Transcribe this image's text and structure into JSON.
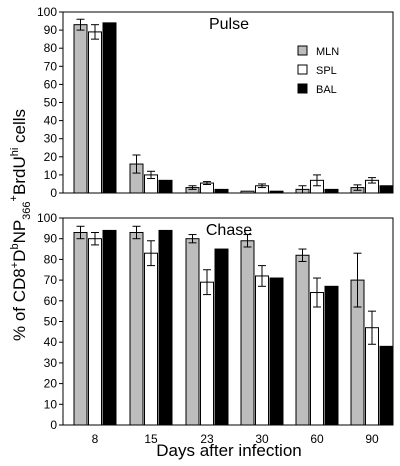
{
  "figure": {
    "xlabel": "Days after infection",
    "ylabel": {
      "p1": "% of CD8",
      "sup1": "+",
      "p2": "D",
      "sup2": "b",
      "p3": "NP",
      "sub3": "366",
      "sup3": "+",
      "p4": "BrdU",
      "sup4": "hi",
      "p5": " cells"
    }
  },
  "colors": {
    "MLN": "#bdbdbd",
    "SPL": "#ffffff",
    "BAL": "#000000"
  },
  "chart_data": [
    {
      "type": "bar",
      "title": "Pulse",
      "categories": [
        "8",
        "15",
        "23",
        "30",
        "60",
        "90"
      ],
      "ylim": [
        0,
        100
      ],
      "yticks": [
        0,
        10,
        20,
        30,
        40,
        50,
        60,
        70,
        80,
        90,
        100
      ],
      "legend": "top-right",
      "grid": false,
      "series": [
        {
          "name": "MLN",
          "values": [
            93,
            16,
            3,
            1,
            2,
            3
          ],
          "errors": [
            3,
            5,
            1,
            0,
            2,
            1.5
          ]
        },
        {
          "name": "SPL",
          "values": [
            89,
            10,
            5.5,
            4,
            7,
            7
          ],
          "errors": [
            4,
            2,
            0.8,
            1,
            3,
            1.5
          ]
        },
        {
          "name": "BAL",
          "values": [
            94,
            7,
            2,
            1,
            2,
            4
          ],
          "errors": [
            0,
            0,
            0,
            0,
            0,
            0
          ]
        }
      ]
    },
    {
      "type": "bar",
      "title": "Chase",
      "categories": [
        "8",
        "15",
        "23",
        "30",
        "60",
        "90"
      ],
      "ylim": [
        0,
        100
      ],
      "yticks": [
        0,
        10,
        20,
        30,
        40,
        50,
        60,
        70,
        80,
        90,
        100
      ],
      "grid": false,
      "series": [
        {
          "name": "MLN",
          "values": [
            93,
            93,
            90,
            89,
            82,
            70
          ],
          "errors": [
            3,
            3,
            2,
            3,
            3,
            13
          ]
        },
        {
          "name": "SPL",
          "values": [
            90,
            83,
            69,
            72,
            64,
            47
          ],
          "errors": [
            3,
            6,
            6,
            5,
            7,
            8
          ]
        },
        {
          "name": "BAL",
          "values": [
            94,
            94,
            85,
            71,
            67,
            38
          ],
          "errors": [
            0,
            0,
            0,
            0,
            0,
            0
          ]
        }
      ]
    }
  ]
}
